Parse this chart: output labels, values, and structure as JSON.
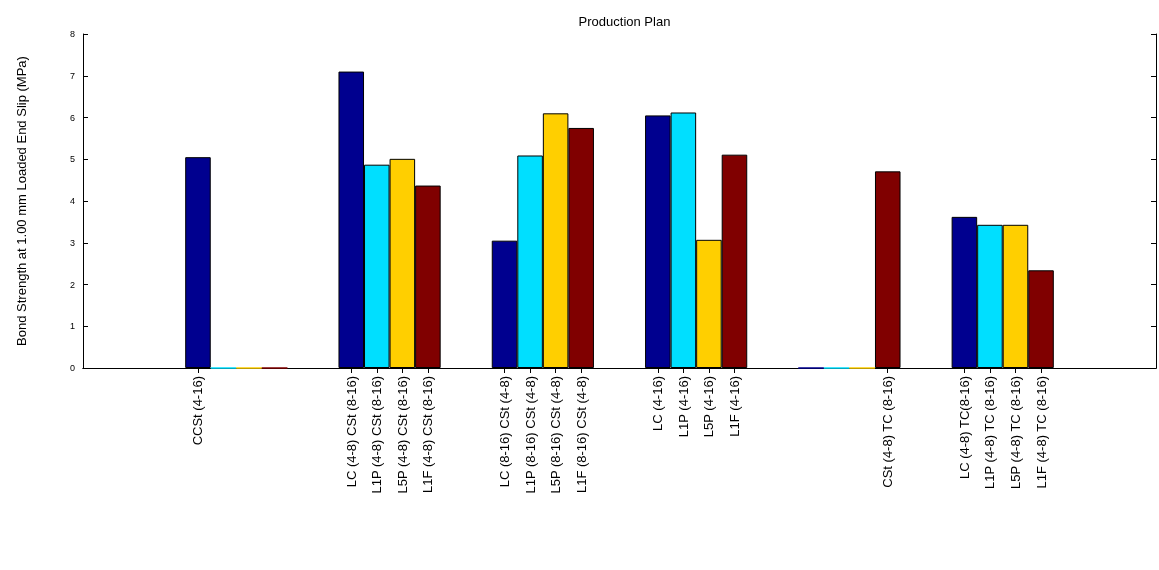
{
  "chart_data": {
    "type": "bar",
    "title": "Production Plan",
    "ylabel": "Bond Strength at 1.00 mm Loaded End Slip (MPa)",
    "categories": [
      null,
      null,
      null,
      null,
      "CCSt (4-16)",
      null,
      null,
      null,
      null,
      null,
      "LC (4-8) CSt (8-16)",
      "L1P (4-8) CSt (8-16)",
      "L5P (4-8) CSt (8-16)",
      "L1F (4-8) CSt (8-16)",
      null,
      null,
      "LC (8-16) CSt (4-8)",
      "L1P (8-16) CSt (4-8)",
      "L5P (8-16) CSt (4-8)",
      "L1F (8-16) CSt (4-8)",
      null,
      null,
      "LC (4-16)",
      "L1P (4-16)",
      "L5P (4-16)",
      "L1F (4-16)",
      null,
      null,
      null,
      null,
      null,
      "CSt (4-8) TC (8-16)",
      null,
      null,
      "LC (4-8) TC(8-16)",
      "L1P (4-8) TC (8-16)",
      "L5P (4-8) TC (8-16)",
      "L1F (4-8) TC (8-16)",
      null,
      null,
      null,
      null
    ],
    "ylim": [
      0,
      8
    ],
    "yticks": [
      0,
      1,
      2,
      3,
      4,
      5,
      6,
      7,
      8
    ],
    "grid": false,
    "series": [
      {
        "color": "#00008f",
        "values": [
          null,
          null,
          null,
          null,
          5.05,
          null,
          null,
          null,
          null,
          null,
          7.1,
          null,
          null,
          null,
          null,
          null,
          3.05,
          null,
          null,
          null,
          null,
          null,
          6.05,
          null,
          null,
          null,
          null,
          null,
          0,
          null,
          null,
          null,
          null,
          null,
          3.62,
          null,
          null,
          null,
          null,
          null,
          null,
          null
        ]
      },
      {
        "color": "#00dfff",
        "values": [
          null,
          null,
          null,
          null,
          null,
          0,
          null,
          null,
          null,
          null,
          null,
          4.87,
          null,
          null,
          null,
          null,
          null,
          5.09,
          null,
          null,
          null,
          null,
          null,
          6.12,
          null,
          null,
          null,
          null,
          null,
          0,
          null,
          null,
          null,
          null,
          null,
          3.43,
          null,
          null,
          null,
          null,
          null,
          null
        ]
      },
      {
        "color": "#ffcf00",
        "values": [
          null,
          null,
          null,
          null,
          null,
          null,
          0,
          null,
          null,
          null,
          null,
          null,
          5.01,
          null,
          null,
          null,
          null,
          null,
          6.1,
          null,
          null,
          null,
          null,
          null,
          3.07,
          null,
          null,
          null,
          null,
          null,
          0,
          null,
          null,
          null,
          null,
          null,
          3.43,
          null,
          null,
          null,
          null,
          null
        ]
      },
      {
        "color": "#800000",
        "values": [
          null,
          null,
          null,
          null,
          null,
          null,
          null,
          0,
          null,
          null,
          null,
          null,
          null,
          4.37,
          null,
          null,
          null,
          null,
          null,
          5.75,
          null,
          null,
          null,
          null,
          null,
          5.11,
          null,
          null,
          null,
          null,
          null,
          4.71,
          null,
          null,
          null,
          null,
          null,
          2.34,
          null,
          null,
          null,
          null
        ]
      }
    ]
  }
}
